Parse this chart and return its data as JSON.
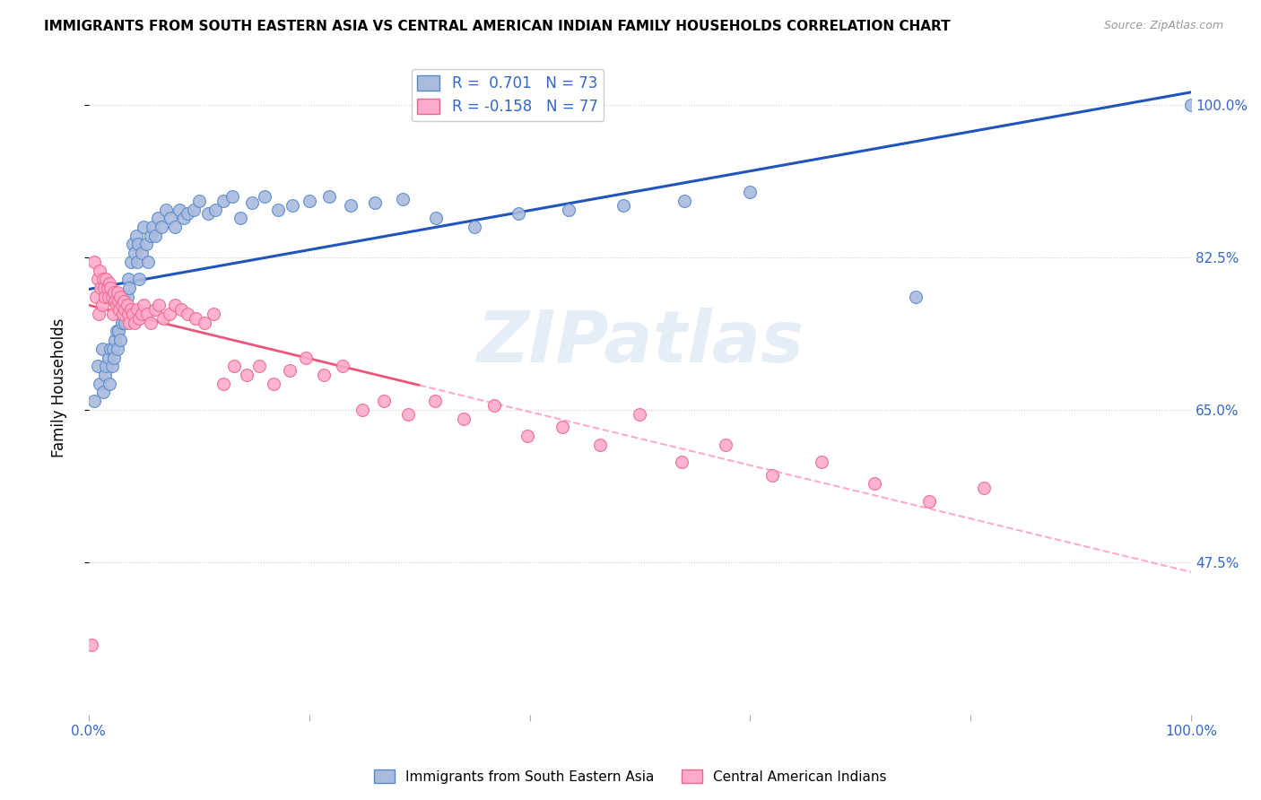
{
  "title": "IMMIGRANTS FROM SOUTH EASTERN ASIA VS CENTRAL AMERICAN INDIAN FAMILY HOUSEHOLDS CORRELATION CHART",
  "source": "Source: ZipAtlas.com",
  "ylabel": "Family Households",
  "legend1_r": "0.701",
  "legend1_n": "73",
  "legend2_r": "-0.158",
  "legend2_n": "77",
  "color_blue_fill": "#AABBDD",
  "color_blue_edge": "#5588CC",
  "color_blue_line": "#2255BB",
  "color_pink_fill": "#FFAACC",
  "color_pink_edge": "#EE6688",
  "color_pink_line": "#EE5577",
  "color_pink_dash": "#FFAACC",
  "watermark": "ZIPatlas",
  "blue_scatter_x": [
    0.005,
    0.008,
    0.01,
    0.012,
    0.013,
    0.015,
    0.016,
    0.018,
    0.019,
    0.02,
    0.021,
    0.022,
    0.023,
    0.024,
    0.025,
    0.026,
    0.027,
    0.028,
    0.029,
    0.03,
    0.031,
    0.032,
    0.033,
    0.035,
    0.036,
    0.037,
    0.038,
    0.04,
    0.042,
    0.043,
    0.044,
    0.045,
    0.046,
    0.048,
    0.05,
    0.052,
    0.054,
    0.056,
    0.058,
    0.06,
    0.063,
    0.066,
    0.07,
    0.074,
    0.078,
    0.082,
    0.086,
    0.09,
    0.095,
    0.1,
    0.108,
    0.115,
    0.122,
    0.13,
    0.138,
    0.148,
    0.16,
    0.172,
    0.185,
    0.2,
    0.218,
    0.238,
    0.26,
    0.285,
    0.315,
    0.35,
    0.39,
    0.435,
    0.485,
    0.54,
    0.6,
    0.75,
    1.0
  ],
  "blue_scatter_y": [
    0.66,
    0.7,
    0.68,
    0.72,
    0.67,
    0.69,
    0.7,
    0.71,
    0.68,
    0.72,
    0.7,
    0.72,
    0.71,
    0.73,
    0.74,
    0.72,
    0.74,
    0.76,
    0.73,
    0.75,
    0.76,
    0.78,
    0.75,
    0.78,
    0.8,
    0.79,
    0.82,
    0.84,
    0.83,
    0.85,
    0.82,
    0.84,
    0.8,
    0.83,
    0.86,
    0.84,
    0.82,
    0.85,
    0.86,
    0.85,
    0.87,
    0.86,
    0.88,
    0.87,
    0.86,
    0.88,
    0.87,
    0.875,
    0.88,
    0.89,
    0.875,
    0.88,
    0.89,
    0.895,
    0.87,
    0.888,
    0.895,
    0.88,
    0.885,
    0.89,
    0.895,
    0.885,
    0.888,
    0.892,
    0.87,
    0.86,
    0.875,
    0.88,
    0.885,
    0.89,
    0.9,
    0.78,
    1.0
  ],
  "pink_scatter_x": [
    0.003,
    0.005,
    0.007,
    0.008,
    0.009,
    0.01,
    0.011,
    0.012,
    0.013,
    0.014,
    0.015,
    0.016,
    0.017,
    0.018,
    0.019,
    0.02,
    0.021,
    0.022,
    0.023,
    0.024,
    0.025,
    0.026,
    0.027,
    0.028,
    0.029,
    0.03,
    0.031,
    0.032,
    0.033,
    0.035,
    0.036,
    0.037,
    0.038,
    0.04,
    0.042,
    0.044,
    0.046,
    0.048,
    0.05,
    0.053,
    0.056,
    0.06,
    0.064,
    0.068,
    0.073,
    0.078,
    0.084,
    0.09,
    0.097,
    0.105,
    0.113,
    0.122,
    0.132,
    0.143,
    0.155,
    0.168,
    0.182,
    0.197,
    0.213,
    0.23,
    0.248,
    0.268,
    0.29,
    0.314,
    0.34,
    0.368,
    0.398,
    0.43,
    0.464,
    0.5,
    0.538,
    0.578,
    0.62,
    0.665,
    0.713,
    0.762,
    0.812
  ],
  "pink_scatter_y": [
    0.38,
    0.82,
    0.78,
    0.8,
    0.76,
    0.81,
    0.79,
    0.77,
    0.8,
    0.79,
    0.78,
    0.8,
    0.79,
    0.78,
    0.795,
    0.79,
    0.78,
    0.76,
    0.785,
    0.775,
    0.77,
    0.785,
    0.775,
    0.765,
    0.78,
    0.77,
    0.76,
    0.775,
    0.765,
    0.77,
    0.76,
    0.75,
    0.765,
    0.76,
    0.75,
    0.765,
    0.755,
    0.76,
    0.77,
    0.76,
    0.75,
    0.765,
    0.77,
    0.755,
    0.76,
    0.77,
    0.765,
    0.76,
    0.755,
    0.75,
    0.76,
    0.68,
    0.7,
    0.69,
    0.7,
    0.68,
    0.695,
    0.71,
    0.69,
    0.7,
    0.65,
    0.66,
    0.645,
    0.66,
    0.64,
    0.655,
    0.62,
    0.63,
    0.61,
    0.645,
    0.59,
    0.61,
    0.575,
    0.59,
    0.565,
    0.545,
    0.56
  ],
  "xlim": [
    0.0,
    1.0
  ],
  "ylim": [
    0.3,
    1.05
  ],
  "ytick_vals": [
    0.475,
    0.65,
    0.825,
    1.0
  ],
  "ytick_labels": [
    "47.5%",
    "65.0%",
    "82.5%",
    "100.0%"
  ],
  "xtick_vals": [
    0.0,
    0.2,
    0.4,
    0.6,
    0.8,
    1.0
  ]
}
